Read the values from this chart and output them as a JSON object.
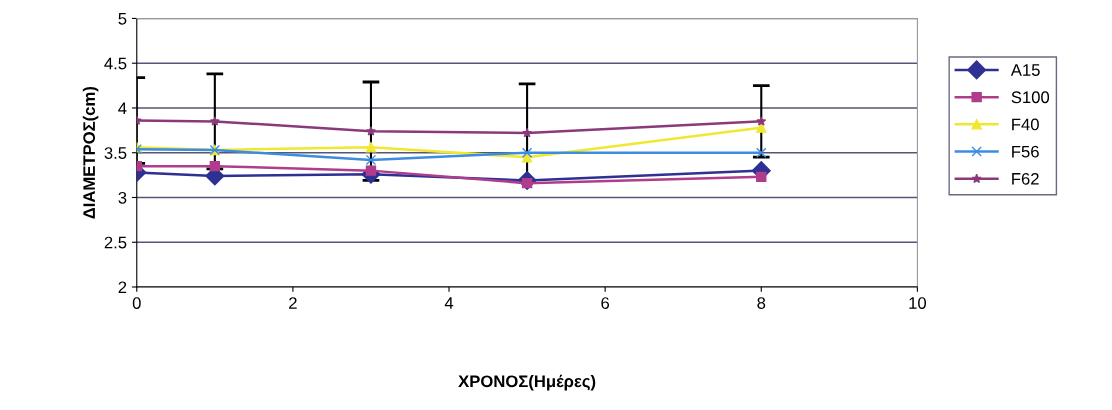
{
  "chart_data": {
    "type": "line",
    "xlabel": "ΧΡΟΝΟΣ(Ημέρες)",
    "ylabel": "ΔΙΑΜΕΤΡΟΣ(cm)",
    "x": [
      0,
      1,
      3,
      5,
      8
    ],
    "series": [
      {
        "name": "A15",
        "color": "#2e3192",
        "marker": "diamond",
        "values": [
          3.28,
          3.24,
          3.26,
          3.19,
          3.3
        ]
      },
      {
        "name": "S100",
        "color": "#b03c8c",
        "marker": "square",
        "values": [
          3.35,
          3.35,
          3.3,
          3.16,
          3.23
        ]
      },
      {
        "name": "F40",
        "color": "#f0e830",
        "marker": "triangle",
        "values": [
          3.56,
          3.53,
          3.56,
          3.45,
          3.78
        ]
      },
      {
        "name": "F56",
        "color": "#3c8ce0",
        "marker": "cross",
        "values": [
          3.54,
          3.53,
          3.42,
          3.5,
          3.5
        ]
      },
      {
        "name": "F62",
        "color": "#8a3a7a",
        "marker": "star",
        "values": [
          3.86,
          3.85,
          3.74,
          3.72,
          3.85
        ],
        "errors": [
          0.48,
          0.53,
          0.55,
          0.55,
          0.4
        ]
      }
    ],
    "xlim": [
      0,
      10
    ],
    "xticks": [
      0,
      2,
      4,
      6,
      8,
      10
    ],
    "ylim": [
      2,
      5
    ],
    "yticks": [
      2,
      2.5,
      3,
      3.5,
      4,
      4.5,
      5
    ],
    "grid": "y",
    "legend": "right"
  }
}
